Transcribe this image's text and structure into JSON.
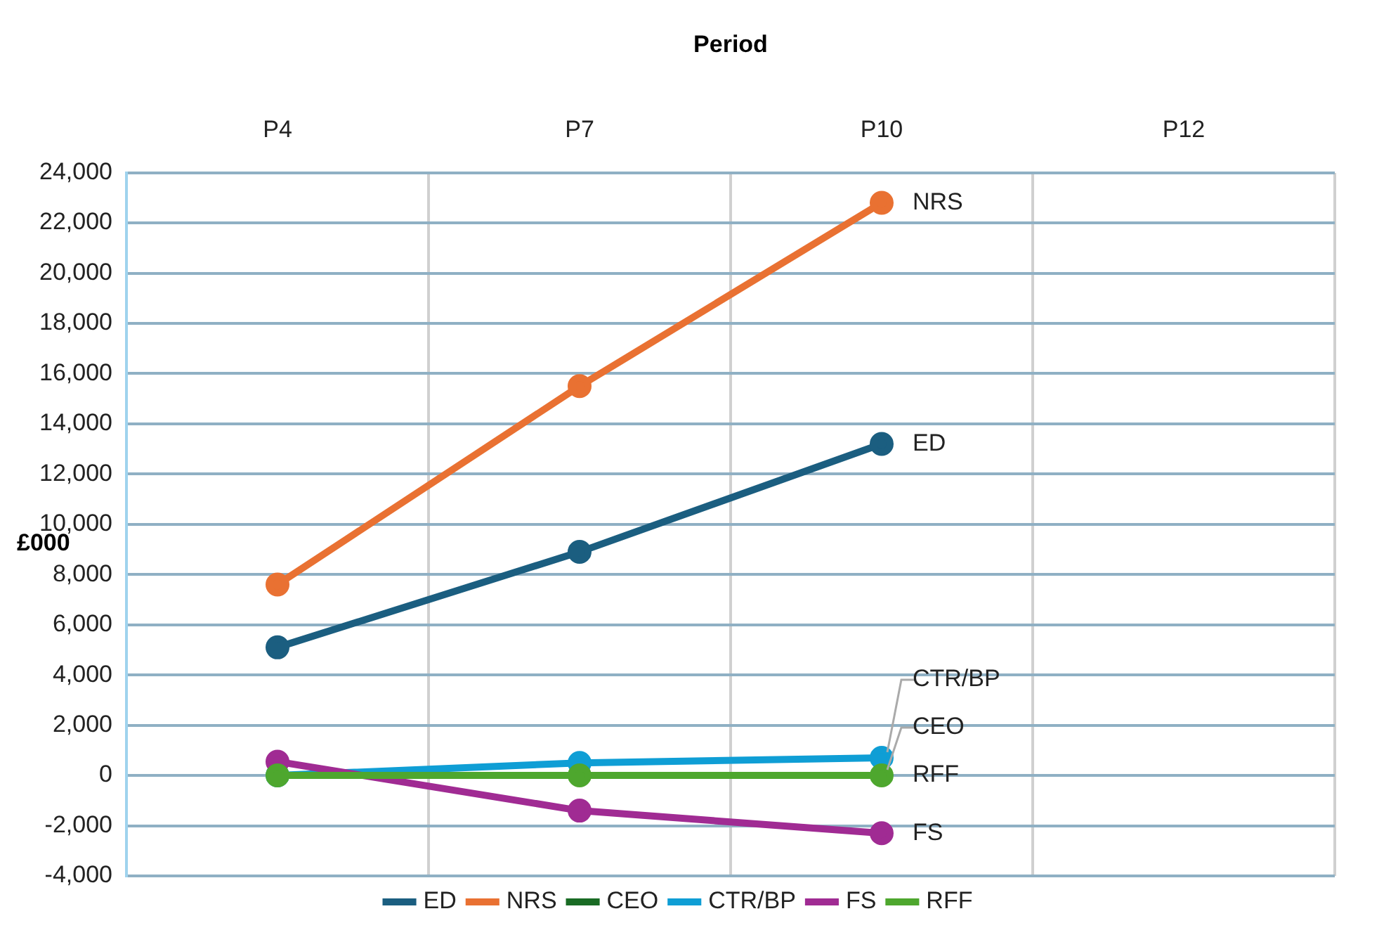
{
  "chart_data": {
    "type": "line",
    "xlabel": "Period",
    "ylabel": "£000",
    "categories": [
      "P4",
      "P7",
      "P10",
      "P12"
    ],
    "series": [
      {
        "name": "ED",
        "color": "#1b5e80",
        "values": [
          5100,
          8900,
          13200,
          null
        ]
      },
      {
        "name": "NRS",
        "color": "#e97132",
        "values": [
          7600,
          15500,
          22800,
          null
        ]
      },
      {
        "name": "CEO",
        "color": "#196b24",
        "values": [
          null,
          null,
          null,
          null
        ]
      },
      {
        "name": "CTR/BP",
        "color": "#0f9ed5",
        "values": [
          0,
          500,
          700,
          null
        ]
      },
      {
        "name": "FS",
        "color": "#a02b93",
        "values": [
          550,
          -1400,
          -2300,
          null
        ]
      },
      {
        "name": "RFF",
        "color": "#4ea72e",
        "values": [
          0,
          0,
          0,
          null
        ]
      }
    ],
    "ylim": [
      -4000,
      24000
    ],
    "yticks": [
      {
        "value": -4000,
        "label": "-4,000"
      },
      {
        "value": -2000,
        "label": "-2,000"
      },
      0,
      {
        "value": 2000,
        "label": "2,000"
      },
      {
        "value": 4000,
        "label": "4,000"
      },
      {
        "value": 6000,
        "label": "6,000"
      },
      {
        "value": 8000,
        "label": "8,000"
      },
      {
        "value": 10000,
        "label": "10,000"
      },
      {
        "value": 12000,
        "label": "12,000"
      },
      {
        "value": 14000,
        "label": "14,000"
      },
      {
        "value": 16000,
        "label": "16,000"
      },
      {
        "value": 18000,
        "label": "18,000"
      },
      {
        "value": 20000,
        "label": "20,000"
      },
      {
        "value": 22000,
        "label": "22,000"
      },
      {
        "value": 24000,
        "label": "24,000"
      }
    ],
    "annotations": [
      {
        "text": "CEO",
        "x": "P10",
        "y": 0
      }
    ],
    "grid": true,
    "legend": "bottom",
    "marker": "circle",
    "line_style": "solid"
  }
}
